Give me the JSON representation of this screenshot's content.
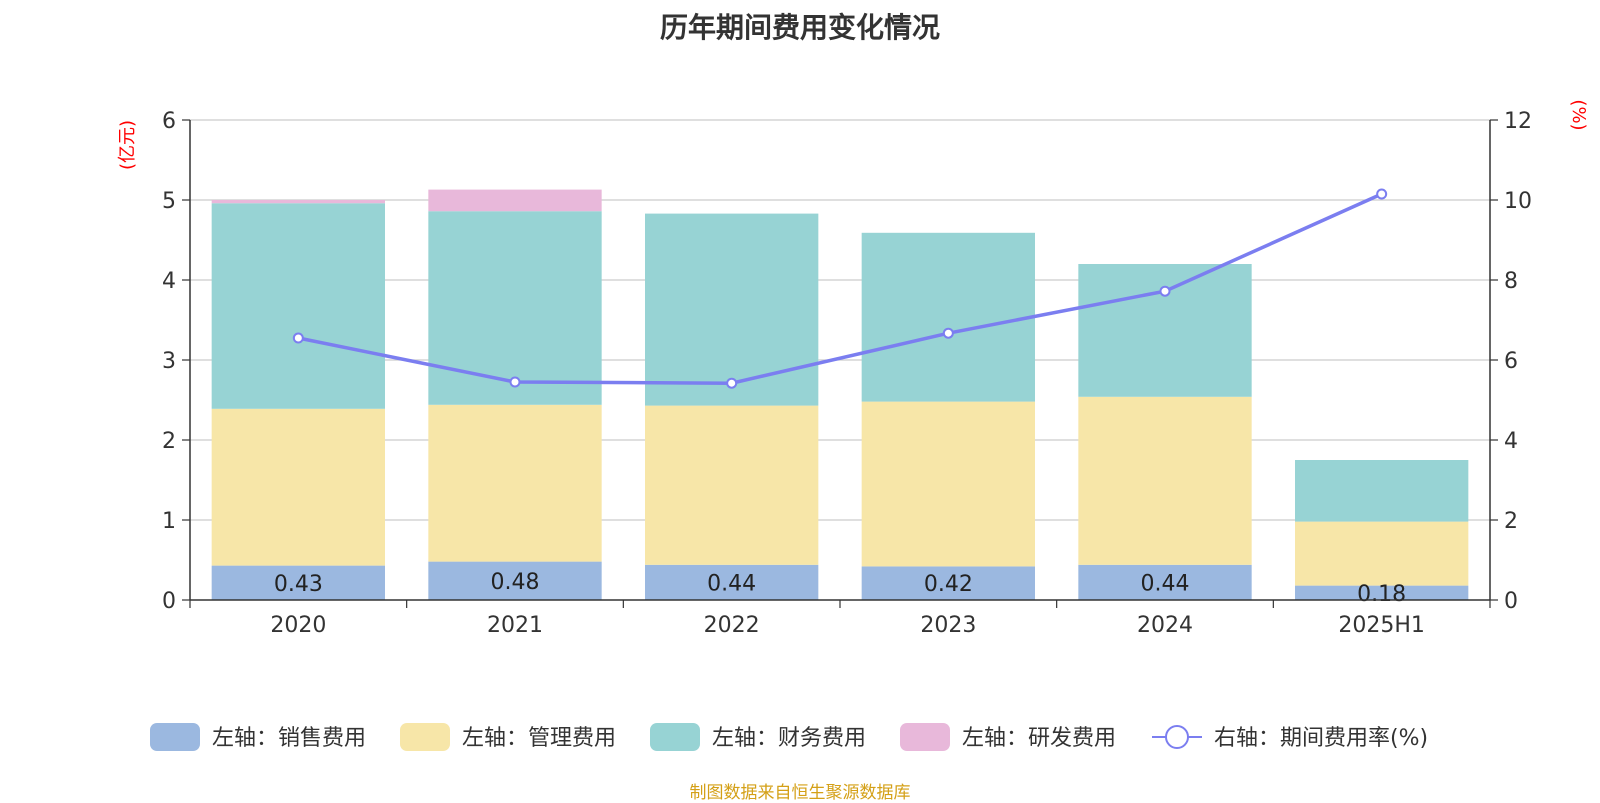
{
  "title": "历年期间费用变化情况",
  "source": "制图数据来自恒生聚源数据库",
  "chart_data": {
    "type": "bar",
    "stacked": true,
    "categories": [
      "2020",
      "2021",
      "2022",
      "2023",
      "2024",
      "2025H1"
    ],
    "left_axis": {
      "unit": "(亿元)",
      "ylim": [
        0,
        6
      ],
      "ticks": [
        "0",
        "1",
        "2",
        "3",
        "4",
        "5",
        "6"
      ]
    },
    "right_axis": {
      "unit": "(%)",
      "ylim": [
        0,
        12
      ],
      "ticks": [
        "0",
        "2",
        "4",
        "6",
        "8",
        "10",
        "12"
      ]
    },
    "grid": true,
    "legend_position": "bottom",
    "series": [
      {
        "name": "左轴：销售费用",
        "axis": "left",
        "type": "bar",
        "color": "#9bb8e0",
        "values": [
          0.43,
          0.48,
          0.44,
          0.42,
          0.44,
          0.18
        ],
        "labels": [
          "0.43",
          "0.48",
          "0.44",
          "0.42",
          "0.44",
          "0.18"
        ]
      },
      {
        "name": "左轴：管理费用",
        "axis": "left",
        "type": "bar",
        "color": "#f7e6a8",
        "values": [
          1.96,
          1.96,
          1.99,
          2.06,
          2.1,
          0.8
        ]
      },
      {
        "name": "左轴：财务费用",
        "axis": "left",
        "type": "bar",
        "color": "#97d3d4",
        "values": [
          2.57,
          2.42,
          2.4,
          2.11,
          1.66,
          0.77
        ]
      },
      {
        "name": "左轴：研发费用",
        "axis": "left",
        "type": "bar",
        "color": "#e8b8da",
        "values": [
          0.04,
          0.27,
          0,
          0,
          0,
          0
        ]
      },
      {
        "name": "右轴：期间费用率(%)",
        "axis": "right",
        "type": "line",
        "color": "#7b7ef0",
        "values": [
          6.55,
          5.45,
          5.42,
          6.67,
          7.72,
          10.15
        ]
      }
    ]
  }
}
